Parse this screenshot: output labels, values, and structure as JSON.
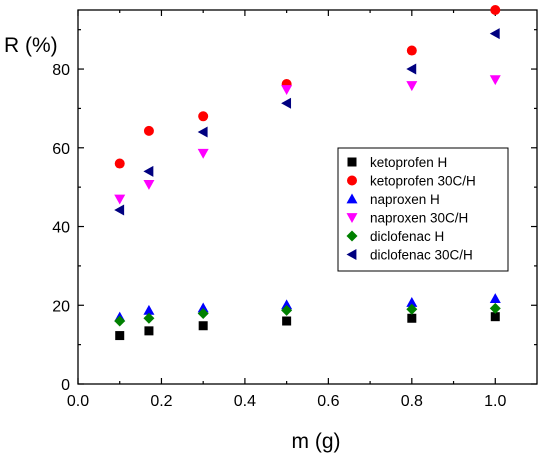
{
  "chart_data": {
    "type": "scatter",
    "xlabel": "m (g)",
    "ylabel": "R (%)",
    "xlim": [
      0.0,
      1.1
    ],
    "ylim": [
      0,
      95
    ],
    "xticks": [
      "0.0",
      "0.2",
      "0.4",
      "0.6",
      "0.8",
      "1.0"
    ],
    "yticks": [
      "0",
      "20",
      "40",
      "60",
      "80"
    ],
    "grid": false,
    "legend_position": "right",
    "x": [
      0.1,
      0.17,
      0.3,
      0.5,
      0.8,
      1.0
    ],
    "series": [
      {
        "name": "ketoprofen H",
        "marker": "square",
        "color": "#000000",
        "values": [
          12.3,
          13.5,
          14.8,
          16.0,
          16.7,
          17.1
        ]
      },
      {
        "name": "ketoprofen 30C/H",
        "marker": "circle",
        "color": "#ff0000",
        "values": [
          56.0,
          64.3,
          68.0,
          76.2,
          84.7,
          95.0
        ]
      },
      {
        "name": "naproxen H",
        "marker": "triangle-up",
        "color": "#0000ff",
        "values": [
          17.0,
          18.7,
          19.3,
          20.1,
          20.7,
          21.7
        ]
      },
      {
        "name": "naproxen 30C/H",
        "marker": "triangle-down",
        "color": "#ff00ff",
        "values": [
          47.0,
          50.7,
          58.6,
          74.8,
          75.8,
          77.3
        ]
      },
      {
        "name": "diclofenac H",
        "marker": "diamond",
        "color": "#008000",
        "values": [
          16.0,
          16.7,
          17.9,
          18.7,
          19.0,
          19.2
        ]
      },
      {
        "name": "diclofenac 30C/H",
        "marker": "triangle-left",
        "color": "#000080",
        "values": [
          44.2,
          54.0,
          64.0,
          71.3,
          80.0,
          89.0
        ]
      }
    ]
  }
}
